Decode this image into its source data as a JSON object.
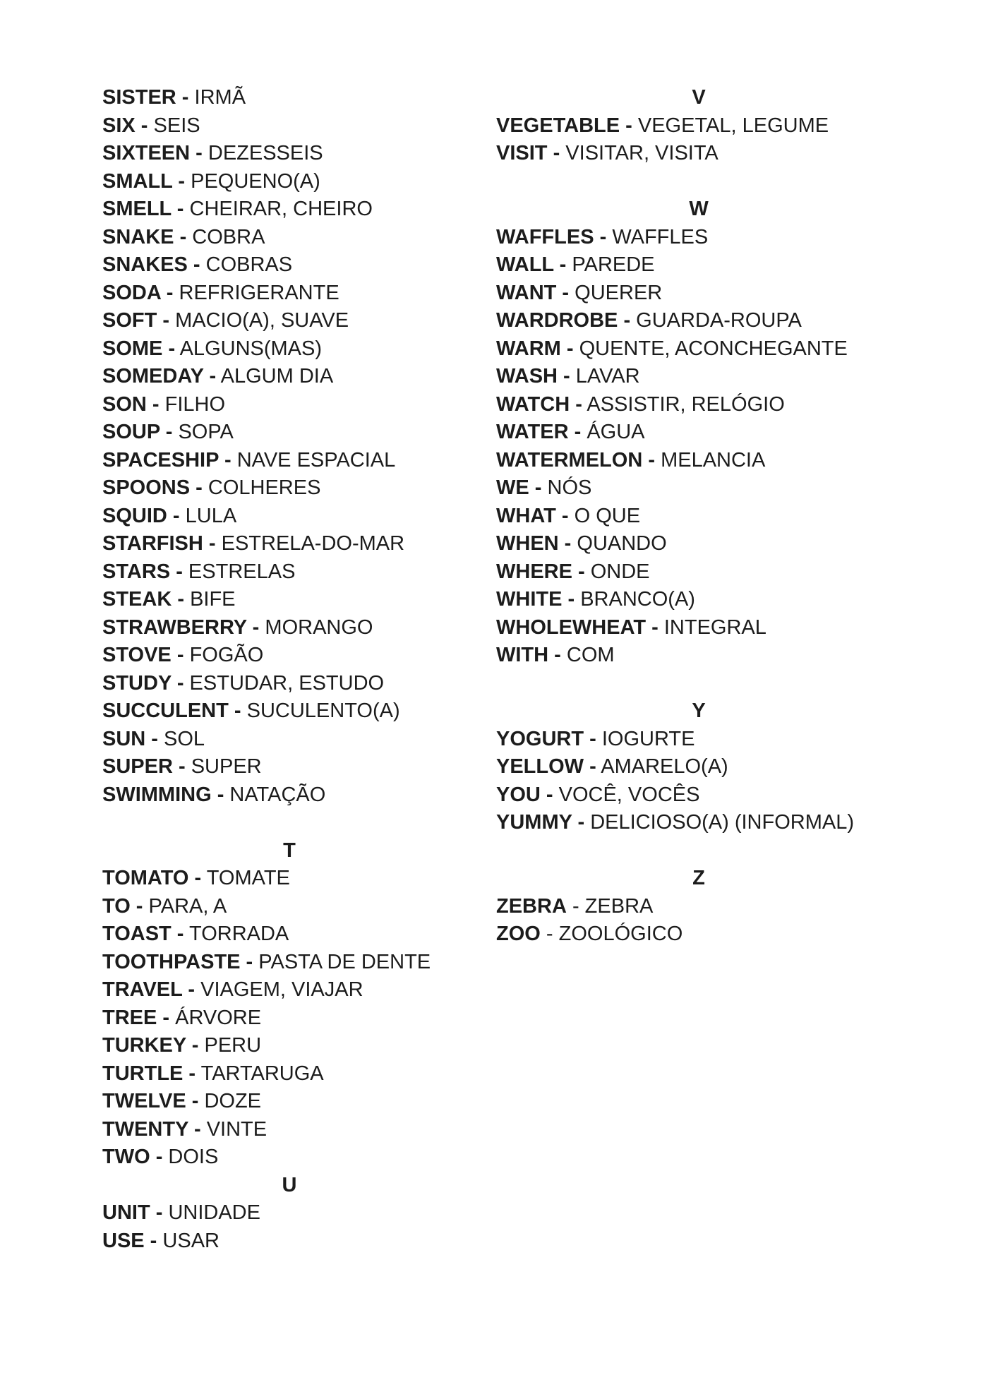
{
  "page": {
    "kind": "vocabulary-glossary-document",
    "language_pair": "English - Portuguese",
    "background_color": "#ffffff",
    "text_color": "#1c1c1c"
  },
  "columns": {
    "left": {
      "lines": [
        {
          "type": "entry",
          "bold": "SISTER -",
          "regular": "IRMÃ"
        },
        {
          "type": "entry",
          "bold": "SIX -",
          "regular": "SEIS"
        },
        {
          "type": "entry",
          "bold": "SIXTEEN -",
          "regular": "DEZESSEIS"
        },
        {
          "type": "entry",
          "bold": "SMALL -",
          "regular": "PEQUENO(A)"
        },
        {
          "type": "entry",
          "bold": "SMELL -",
          "regular": "CHEIRAR, CHEIRO"
        },
        {
          "type": "entry",
          "bold": "SNAKE -",
          "regular": "COBRA"
        },
        {
          "type": "entry",
          "bold": "SNAKES -",
          "regular": "COBRAS"
        },
        {
          "type": "entry",
          "bold": "SODA -",
          "regular": "REFRIGERANTE"
        },
        {
          "type": "entry",
          "bold": "SOFT -",
          "regular": "MACIO(A), SUAVE"
        },
        {
          "type": "entry",
          "bold": "SOME -",
          "regular": "ALGUNS(MAS)"
        },
        {
          "type": "entry",
          "bold": "SOMEDAY -",
          "regular": "ALGUM DIA"
        },
        {
          "type": "entry",
          "bold": "SON -",
          "regular": "FILHO"
        },
        {
          "type": "entry",
          "bold": "SOUP -",
          "regular": "SOPA"
        },
        {
          "type": "entry",
          "bold": "SPACESHIP -",
          "regular": "NAVE ESPACIAL"
        },
        {
          "type": "entry",
          "bold": "SPOONS -",
          "regular": "COLHERES"
        },
        {
          "type": "entry",
          "bold": "SQUID -",
          "regular": "LULA"
        },
        {
          "type": "entry",
          "bold": "STARFISH -",
          "regular": "ESTRELA-DO-MAR"
        },
        {
          "type": "entry",
          "bold": "STARS -",
          "regular": "ESTRELAS"
        },
        {
          "type": "entry",
          "bold": "STEAK -",
          "regular": "BIFE"
        },
        {
          "type": "entry",
          "bold": "STRAWBERRY -",
          "regular": "MORANGO"
        },
        {
          "type": "entry",
          "bold": "STOVE -",
          "regular": "FOGÃO"
        },
        {
          "type": "entry",
          "bold": "STUDY -",
          "regular": "ESTUDAR, ESTUDO"
        },
        {
          "type": "entry",
          "bold": "SUCCULENT -",
          "regular": "SUCULENTO(A)"
        },
        {
          "type": "entry",
          "bold": "SUN -",
          "regular": "SOL"
        },
        {
          "type": "entry",
          "bold": "SUPER -",
          "regular": "SUPER"
        },
        {
          "type": "entry",
          "bold": "SWIMMING -",
          "regular": "NATAÇÃO"
        },
        {
          "type": "blank"
        },
        {
          "type": "header",
          "text": "T"
        },
        {
          "type": "entry",
          "bold": "TOMATO -",
          "regular": "TOMATE"
        },
        {
          "type": "entry",
          "bold": "TO -",
          "regular": "PARA, A"
        },
        {
          "type": "entry",
          "bold": "TOAST -",
          "regular": "TORRADA"
        },
        {
          "type": "entry",
          "bold": "TOOTHPASTE -",
          "regular": "PASTA DE DENTE"
        },
        {
          "type": "entry",
          "bold": "TRAVEL -",
          "regular": "VIAGEM, VIAJAR"
        },
        {
          "type": "entry",
          "bold": "TREE -",
          "regular": "ÁRVORE"
        },
        {
          "type": "entry",
          "bold": "TURKEY -",
          "regular": "PERU"
        },
        {
          "type": "entry",
          "bold": "TURTLE -",
          "regular": "TARTARUGA"
        },
        {
          "type": "entry",
          "bold": "TWELVE -",
          "regular": "DOZE"
        },
        {
          "type": "entry",
          "bold": "TWENTY -",
          "regular": "VINTE"
        },
        {
          "type": "entry",
          "bold": "TWO -",
          "regular": "DOIS"
        },
        {
          "type": "header",
          "text": "U"
        },
        {
          "type": "entry",
          "bold": "UNIT -",
          "regular": "UNIDADE"
        },
        {
          "type": "entry",
          "bold": "USE -",
          "regular": "USAR"
        }
      ]
    },
    "right": {
      "lines": [
        {
          "type": "header",
          "text": "V"
        },
        {
          "type": "entry",
          "bold": "VEGETABLE -",
          "regular": "VEGETAL, LEGUME"
        },
        {
          "type": "entry",
          "bold": "VISIT -",
          "regular": "VISITAR, VISITA"
        },
        {
          "type": "blank"
        },
        {
          "type": "header",
          "text": "W"
        },
        {
          "type": "entry",
          "bold": "WAFFLES -",
          "regular": "WAFFLES"
        },
        {
          "type": "entry",
          "bold": "WALL -",
          "regular": "PAREDE"
        },
        {
          "type": "entry",
          "bold": "WANT -",
          "regular": "QUERER"
        },
        {
          "type": "entry",
          "bold": "WARDROBE -",
          "regular": "GUARDA-ROUPA"
        },
        {
          "type": "entry",
          "bold": "WARM -",
          "regular": "QUENTE, ACONCHEGANTE"
        },
        {
          "type": "entry",
          "bold": "WASH -",
          "regular": "LAVAR"
        },
        {
          "type": "entry",
          "bold": "WATCH -",
          "regular": "ASSISTIR, RELÓGIO"
        },
        {
          "type": "entry",
          "bold": "WATER -",
          "regular": "ÁGUA"
        },
        {
          "type": "entry",
          "bold": "WATERMELON -",
          "regular": "MELANCIA"
        },
        {
          "type": "entry",
          "bold": "WE -",
          "regular": "NÓS"
        },
        {
          "type": "entry",
          "bold": "WHAT -",
          "regular": "O QUE"
        },
        {
          "type": "entry",
          "bold": "WHEN -",
          "regular": "QUANDO"
        },
        {
          "type": "entry",
          "bold": "WHERE -",
          "regular": "ONDE"
        },
        {
          "type": "entry",
          "bold": "WHITE -",
          "regular": "BRANCO(A)"
        },
        {
          "type": "entry",
          "bold": "WHOLEWHEAT -",
          "regular": "INTEGRAL"
        },
        {
          "type": "entry",
          "bold": "WITH -",
          "regular": "COM"
        },
        {
          "type": "blank"
        },
        {
          "type": "header",
          "text": "Y"
        },
        {
          "type": "entry",
          "bold": "YOGURT -",
          "regular": "IOGURTE"
        },
        {
          "type": "entry",
          "bold": "YELLOW -",
          "regular": "AMARELO(A)"
        },
        {
          "type": "entry",
          "bold": "YOU -",
          "regular": "VOCÊ, VOCÊS"
        },
        {
          "type": "entry",
          "bold": "YUMMY -",
          "regular": "DELICIOSO(A) (INFORMAL)"
        },
        {
          "type": "blank"
        },
        {
          "type": "header",
          "text": "Z"
        },
        {
          "type": "entry",
          "bold": "ZEBRA",
          "regular": "- ZEBRA"
        },
        {
          "type": "entry",
          "bold": "ZOO",
          "regular": "- ZOOLÓGICO"
        }
      ]
    }
  }
}
